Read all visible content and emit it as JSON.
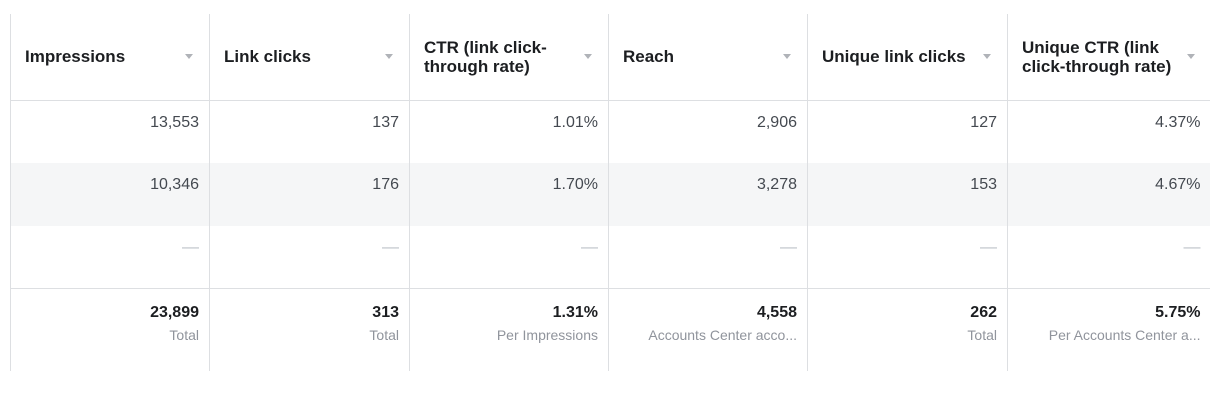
{
  "columns": [
    {
      "label": "Impressions"
    },
    {
      "label": "Link clicks"
    },
    {
      "label": "CTR (link click-through rate)"
    },
    {
      "label": "Reach"
    },
    {
      "label": "Unique link clicks"
    },
    {
      "label": "Unique CTR (link click-through rate)"
    }
  ],
  "rows": [
    [
      "13,553",
      "137",
      "1.01%",
      "2,906",
      "127",
      "4.37%"
    ],
    [
      "10,346",
      "176",
      "1.70%",
      "3,278",
      "153",
      "4.67%"
    ],
    [
      "—",
      "—",
      "—",
      "—",
      "—",
      "—"
    ]
  ],
  "totals": [
    {
      "value": "23,899",
      "label": "Total"
    },
    {
      "value": "313",
      "label": "Total"
    },
    {
      "value": "1.31%",
      "label": "Per Impressions"
    },
    {
      "value": "4,558",
      "label": "Accounts Center acco..."
    },
    {
      "value": "262",
      "label": "Total"
    },
    {
      "value": "5.75%",
      "label": "Per Accounts Center a..."
    }
  ],
  "colors": {
    "border": "#dddfe2",
    "alt_row": "#f5f6f7",
    "header_text": "#1c1e21",
    "cell_text": "#444950",
    "muted_text": "#90949c"
  },
  "icons": {
    "sort": "chevron-down-icon"
  }
}
